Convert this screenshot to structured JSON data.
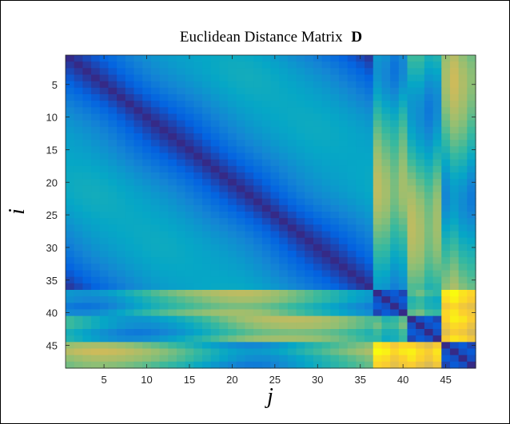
{
  "chart_data": {
    "type": "heatmap",
    "title": "Euclidean Distance Matrix",
    "title_bold": "D",
    "xlabel": "j",
    "ylabel": "i",
    "size": 48,
    "x_ticks": [
      5,
      10,
      15,
      20,
      25,
      30,
      35,
      40,
      45
    ],
    "y_ticks": [
      5,
      10,
      15,
      20,
      25,
      30,
      35,
      40,
      45
    ],
    "xlim": [
      0.5,
      48.5
    ],
    "ylim": [
      0.5,
      48.5
    ],
    "y_axis_reversed": true,
    "colormap": "parula",
    "colormap_stops": [
      "#352a87",
      "#0363e1",
      "#1485d4",
      "#06a7c6",
      "#38b99e",
      "#92bf73",
      "#d9ba56",
      "#fcce2e",
      "#f9fb0e"
    ],
    "structure": {
      "circle_block": {
        "range": [
          1,
          36
        ],
        "description": "points on a loop; distance grows with index offset (diagonal bands)"
      },
      "cluster_blocks": [
        {
          "range": [
            37,
            40
          ],
          "description": "tight cluster, near-zero self distance"
        },
        {
          "range": [
            41,
            44
          ],
          "description": "tight cluster, near-zero self distance"
        },
        {
          "range": [
            45,
            48
          ],
          "description": "tight cluster, near-zero self distance"
        }
      ]
    }
  }
}
